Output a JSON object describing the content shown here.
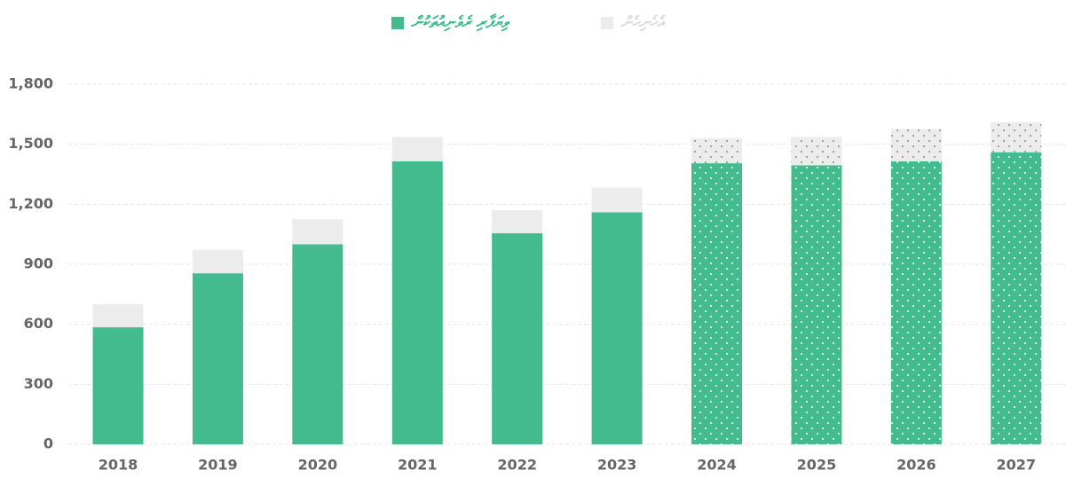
{
  "chart_data": {
    "type": "stacked_bar",
    "categories": [
      "2018",
      "2019",
      "2020",
      "2021",
      "2022",
      "2023",
      "2024",
      "2025",
      "2026",
      "2027"
    ],
    "series": [
      {
        "name": "ވިޔަފާރި ރެވެނިއުތަކުން",
        "color": "#43bb8e",
        "values": [
          585,
          855,
          1000,
          1415,
          1055,
          1160,
          1405,
          1395,
          1415,
          1460
        ]
      },
      {
        "name": "އެހެނިހެން",
        "color": "#ececec",
        "values": [
          115,
          117,
          125,
          122,
          115,
          123,
          125,
          142,
          162,
          150
        ]
      }
    ],
    "dotted": [
      false,
      false,
      false,
      false,
      false,
      false,
      true,
      true,
      true,
      true
    ],
    "ylim": [
      0,
      1800
    ],
    "yticks": [
      0,
      300,
      600,
      900,
      {
        "value": 1200,
        "label": "1,200"
      },
      {
        "value": 1500,
        "label": "1,500"
      },
      {
        "value": 1800,
        "label": "1,800"
      }
    ],
    "grid": true
  }
}
